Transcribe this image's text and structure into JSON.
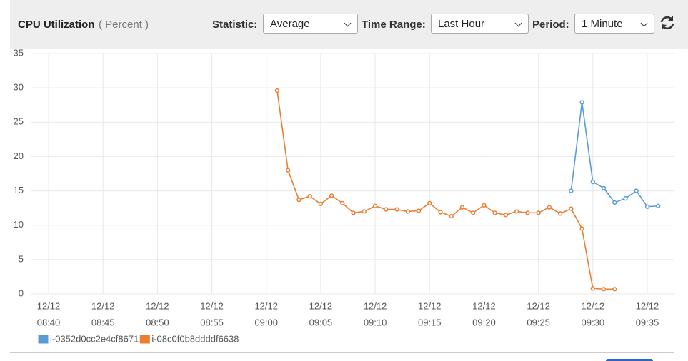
{
  "toolbar": {
    "statistic_label": "Statistic:",
    "statistic": "Average",
    "time_range_label": "Time Range:",
    "time_range": "Last Hour",
    "period_label": "Period:",
    "period": "1 Minute"
  },
  "chart_data": {
    "type": "line",
    "title": "CPU Utilization",
    "unit": "( Percent )",
    "x": [
      "12/12 09:01",
      "12/12 09:02",
      "12/12 09:03",
      "12/12 09:04",
      "12/12 09:05",
      "12/12 09:06",
      "12/12 09:07",
      "12/12 09:08",
      "12/12 09:09",
      "12/12 09:10",
      "12/12 09:11",
      "12/12 09:12",
      "12/12 09:13",
      "12/12 09:14",
      "12/12 09:15",
      "12/12 09:16",
      "12/12 09:17",
      "12/12 09:18",
      "12/12 09:19",
      "12/12 09:20",
      "12/12 09:21",
      "12/12 09:22",
      "12/12 09:23",
      "12/12 09:24",
      "12/12 09:25",
      "12/12 09:26",
      "12/12 09:27",
      "12/12 09:28",
      "12/12 09:29",
      "12/12 09:30",
      "12/12 09:31",
      "12/12 09:32",
      "12/12 09:33",
      "12/12 09:34",
      "12/12 09:35",
      "12/12 09:36"
    ],
    "series": [
      {
        "name": "i-0352d0cc2e4cf8671",
        "color": "#5b9bd5",
        "values": [
          null,
          null,
          null,
          null,
          null,
          null,
          null,
          null,
          null,
          null,
          null,
          null,
          null,
          null,
          null,
          null,
          null,
          null,
          null,
          null,
          null,
          null,
          null,
          null,
          null,
          null,
          null,
          15.0,
          27.9,
          16.3,
          15.4,
          13.3,
          13.9,
          15.0,
          12.7,
          12.8
        ]
      },
      {
        "name": "i-08c0f0b8ddddf6638",
        "color": "#ed7d31",
        "values": [
          29.6,
          18.0,
          13.7,
          14.2,
          13.1,
          14.3,
          13.2,
          11.8,
          12.0,
          12.8,
          12.3,
          12.3,
          12.0,
          12.1,
          13.2,
          11.9,
          11.3,
          12.6,
          11.8,
          12.9,
          11.8,
          11.5,
          12.0,
          11.8,
          11.8,
          12.6,
          11.7,
          12.4,
          9.5,
          0.8,
          0.7,
          0.7,
          null,
          null,
          null,
          null
        ]
      }
    ],
    "xlim": [
      "12/12 08:37",
      "12/12 09:38"
    ],
    "xticks": [
      {
        "value": "12/12 08:40",
        "label": [
          "12/12",
          "08:40"
        ]
      },
      {
        "value": "12/12 08:45",
        "label": [
          "12/12",
          "08:45"
        ]
      },
      {
        "value": "12/12 08:50",
        "label": [
          "12/12",
          "08:50"
        ]
      },
      {
        "value": "12/12 08:55",
        "label": [
          "12/12",
          "08:55"
        ]
      },
      {
        "value": "12/12 09:00",
        "label": [
          "12/12",
          "09:00"
        ]
      },
      {
        "value": "12/12 09:05",
        "label": [
          "12/12",
          "09:05"
        ]
      },
      {
        "value": "12/12 09:10",
        "label": [
          "12/12",
          "09:10"
        ]
      },
      {
        "value": "12/12 09:15",
        "label": [
          "12/12",
          "09:15"
        ]
      },
      {
        "value": "12/12 09:20",
        "label": [
          "12/12",
          "09:20"
        ]
      },
      {
        "value": "12/12 09:25",
        "label": [
          "12/12",
          "09:25"
        ]
      },
      {
        "value": "12/12 09:30",
        "label": [
          "12/12",
          "09:30"
        ]
      },
      {
        "value": "12/12 09:35",
        "label": [
          "12/12",
          "09:35"
        ]
      }
    ],
    "ylim": [
      0,
      35
    ],
    "yticks": [
      0,
      5,
      10,
      15,
      20,
      25,
      30,
      35
    ],
    "grid": true,
    "legend": "bottom-left"
  }
}
